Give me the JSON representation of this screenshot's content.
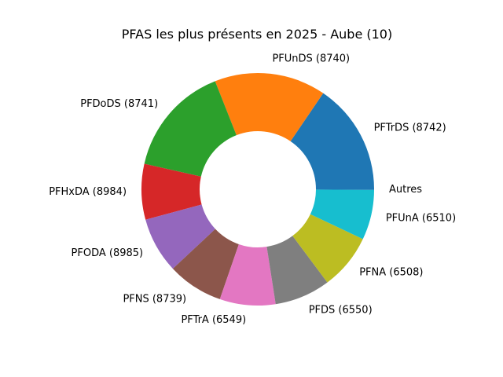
{
  "chart_data": {
    "type": "pie",
    "donut": true,
    "title": "PFAS les plus présents en 2025 - Aube (10)",
    "start_angle_deg": 0,
    "direction": "counterclockwise",
    "slices": [
      {
        "label": "PFTrDS (8742)",
        "value": 10,
        "color": "#1f77b4"
      },
      {
        "label": "PFUnDS (8740)",
        "value": 10,
        "color": "#ff7f0e"
      },
      {
        "label": "PFDoDS (8741)",
        "value": 10,
        "color": "#2ca02c"
      },
      {
        "label": "PFHxDA (8984)",
        "value": 5,
        "color": "#d62728"
      },
      {
        "label": "PFODA (8985)",
        "value": 5,
        "color": "#9467bd"
      },
      {
        "label": "PFNS (8739)",
        "value": 5,
        "color": "#8c564b"
      },
      {
        "label": "PFTrA (6549)",
        "value": 5,
        "color": "#e377c2"
      },
      {
        "label": "PFDS (6550)",
        "value": 5,
        "color": "#7f7f7f"
      },
      {
        "label": "PFNA (6508)",
        "value": 5,
        "color": "#bcbd22"
      },
      {
        "label": "PFUnA (6510)",
        "value": 4.5,
        "color": "#17becf"
      },
      {
        "label": "Autres",
        "value": 0.05,
        "color": "#1f77b4"
      }
    ]
  }
}
